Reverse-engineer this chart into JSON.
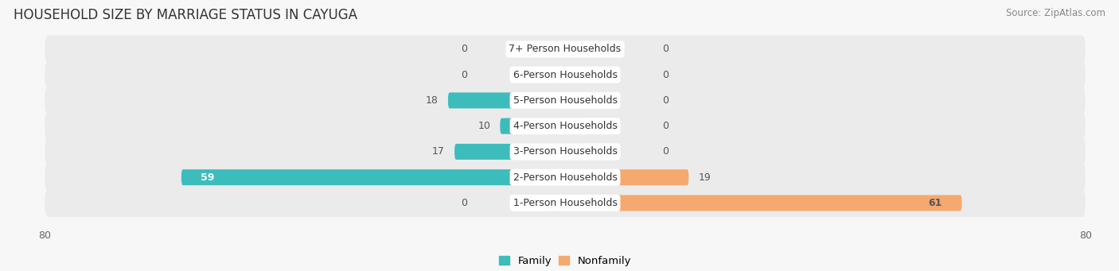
{
  "title": "HOUSEHOLD SIZE BY MARRIAGE STATUS IN CAYUGA",
  "source": "Source: ZipAtlas.com",
  "categories": [
    "7+ Person Households",
    "6-Person Households",
    "5-Person Households",
    "4-Person Households",
    "3-Person Households",
    "2-Person Households",
    "1-Person Households"
  ],
  "family_values": [
    0,
    0,
    18,
    10,
    17,
    59,
    0
  ],
  "nonfamily_values": [
    0,
    0,
    0,
    0,
    0,
    19,
    61
  ],
  "family_color": "#3DBCBC",
  "nonfamily_color": "#F5A96E",
  "axis_max": 80,
  "label_color_dark": "#555555",
  "label_color_white": "#FFFFFF",
  "title_fontsize": 12,
  "source_fontsize": 8.5,
  "label_fontsize": 9,
  "category_fontsize": 9,
  "row_bg_color": "#EBEBEB",
  "fig_bg_color": "#F7F7F7",
  "min_stub": 3
}
